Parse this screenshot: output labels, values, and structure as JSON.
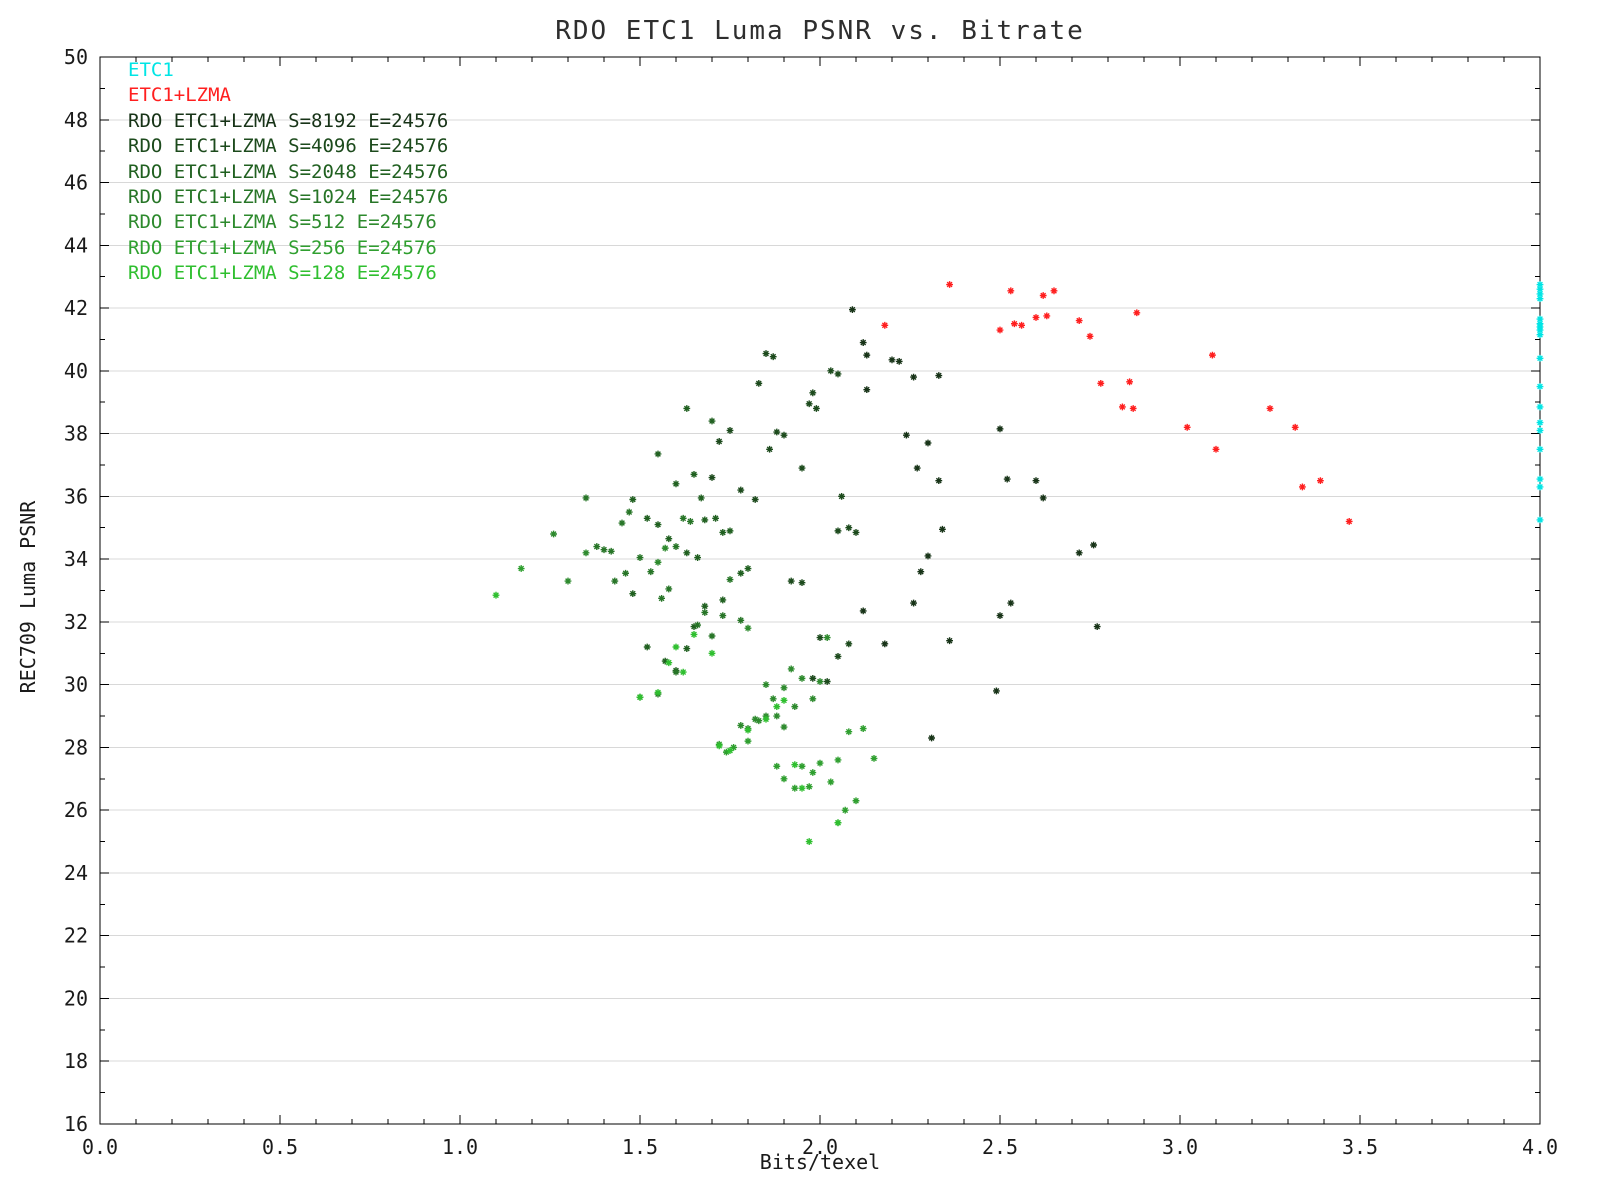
{
  "chart_data": {
    "type": "scatter",
    "title": "RDO ETC1 Luma PSNR vs. Bitrate",
    "xlabel": "Bits/texel",
    "ylabel": "REC709 Luma PSNR",
    "xlim": [
      0.0,
      4.0
    ],
    "ylim": [
      16,
      50
    ],
    "x_ticks": [
      "0.0",
      "0.5",
      "1.0",
      "1.5",
      "2.0",
      "2.5",
      "3.0",
      "3.5",
      "4.0"
    ],
    "y_ticks": [
      16,
      18,
      20,
      22,
      24,
      26,
      28,
      30,
      32,
      34,
      36,
      38,
      40,
      42,
      44,
      46,
      48,
      50
    ],
    "grid": true,
    "grid_color": "#d8d8d8",
    "axis_color": "#000000",
    "legend_position": "top-left-inside",
    "marker": "asterisk",
    "series": [
      {
        "name": "ETC1",
        "color": "#00e5e5",
        "points": [
          [
            4.0,
            42.75
          ],
          [
            4.0,
            42.6
          ],
          [
            4.0,
            42.45
          ],
          [
            4.0,
            42.3
          ],
          [
            4.0,
            41.65
          ],
          [
            4.0,
            41.5
          ],
          [
            4.0,
            41.4
          ],
          [
            4.0,
            41.3
          ],
          [
            4.0,
            41.15
          ],
          [
            4.0,
            40.4
          ],
          [
            4.0,
            39.5
          ],
          [
            4.0,
            38.85
          ],
          [
            4.0,
            38.35
          ],
          [
            4.0,
            38.1
          ],
          [
            4.0,
            37.5
          ],
          [
            4.0,
            36.55
          ],
          [
            4.0,
            36.3
          ],
          [
            4.0,
            35.25
          ]
        ]
      },
      {
        "name": "ETC1+LZMA",
        "color": "#ff1f1f",
        "points": [
          [
            2.18,
            41.45
          ],
          [
            2.36,
            42.75
          ],
          [
            2.5,
            41.3
          ],
          [
            2.53,
            42.55
          ],
          [
            2.54,
            41.5
          ],
          [
            2.56,
            41.45
          ],
          [
            2.6,
            41.7
          ],
          [
            2.62,
            42.4
          ],
          [
            2.63,
            41.75
          ],
          [
            2.65,
            42.55
          ],
          [
            2.72,
            41.6
          ],
          [
            2.75,
            41.1
          ],
          [
            2.78,
            39.6
          ],
          [
            2.84,
            38.85
          ],
          [
            2.86,
            39.65
          ],
          [
            2.88,
            41.85
          ],
          [
            2.87,
            38.8
          ],
          [
            3.02,
            38.2
          ],
          [
            3.09,
            40.5
          ],
          [
            3.1,
            37.5
          ],
          [
            3.25,
            38.8
          ],
          [
            3.32,
            38.2
          ],
          [
            3.34,
            36.3
          ],
          [
            3.39,
            36.5
          ],
          [
            3.47,
            35.2
          ]
        ]
      },
      {
        "name": "RDO ETC1+LZMA S=8192 E=24576",
        "color": "#173317",
        "points": [
          [
            2.09,
            41.95
          ],
          [
            2.12,
            40.9
          ],
          [
            2.13,
            40.5
          ],
          [
            2.2,
            40.35
          ],
          [
            2.22,
            40.3
          ],
          [
            2.26,
            39.8
          ],
          [
            2.13,
            39.4
          ],
          [
            2.33,
            39.85
          ],
          [
            2.24,
            37.95
          ],
          [
            2.3,
            37.7
          ],
          [
            2.27,
            36.9
          ],
          [
            2.33,
            36.5
          ],
          [
            2.5,
            38.15
          ],
          [
            2.52,
            36.55
          ],
          [
            2.6,
            36.5
          ],
          [
            2.62,
            35.95
          ],
          [
            2.72,
            34.2
          ],
          [
            2.76,
            34.45
          ],
          [
            2.77,
            31.85
          ],
          [
            2.34,
            34.95
          ],
          [
            2.3,
            34.1
          ],
          [
            2.28,
            33.6
          ],
          [
            2.26,
            32.6
          ],
          [
            2.36,
            31.4
          ],
          [
            2.5,
            32.2
          ],
          [
            2.53,
            32.6
          ],
          [
            2.49,
            29.8
          ],
          [
            2.31,
            28.3
          ],
          [
            2.18,
            31.3
          ],
          [
            2.12,
            32.35
          ]
        ]
      },
      {
        "name": "RDO ETC1+LZMA S=4096 E=24576",
        "color": "#1c4a1c",
        "points": [
          [
            1.85,
            40.55
          ],
          [
            1.87,
            40.45
          ],
          [
            1.83,
            39.6
          ],
          [
            1.98,
            39.3
          ],
          [
            1.97,
            38.95
          ],
          [
            1.99,
            38.8
          ],
          [
            2.03,
            40.0
          ],
          [
            2.05,
            39.9
          ],
          [
            1.88,
            38.05
          ],
          [
            1.9,
            37.95
          ],
          [
            1.86,
            37.5
          ],
          [
            1.72,
            37.75
          ],
          [
            1.75,
            38.1
          ],
          [
            1.7,
            36.6
          ],
          [
            1.78,
            36.2
          ],
          [
            1.82,
            35.9
          ],
          [
            1.95,
            36.9
          ],
          [
            2.06,
            36.0
          ],
          [
            2.08,
            35.0
          ],
          [
            2.05,
            34.9
          ],
          [
            2.1,
            34.85
          ],
          [
            1.92,
            33.3
          ],
          [
            1.95,
            33.25
          ],
          [
            2.0,
            31.5
          ],
          [
            2.05,
            30.9
          ],
          [
            2.08,
            31.3
          ],
          [
            1.98,
            30.2
          ],
          [
            2.02,
            30.1
          ]
        ]
      },
      {
        "name": "RDO ETC1+LZMA S=2048 E=24576",
        "color": "#206020",
        "points": [
          [
            1.63,
            38.8
          ],
          [
            1.7,
            38.4
          ],
          [
            1.55,
            37.35
          ],
          [
            1.6,
            36.4
          ],
          [
            1.65,
            36.7
          ],
          [
            1.67,
            35.95
          ],
          [
            1.48,
            35.9
          ],
          [
            1.52,
            35.3
          ],
          [
            1.55,
            35.1
          ],
          [
            1.58,
            34.65
          ],
          [
            1.63,
            34.2
          ],
          [
            1.66,
            34.05
          ],
          [
            1.68,
            35.25
          ],
          [
            1.71,
            35.3
          ],
          [
            1.73,
            34.85
          ],
          [
            1.75,
            34.9
          ],
          [
            1.78,
            33.55
          ],
          [
            1.8,
            33.7
          ],
          [
            1.73,
            32.7
          ],
          [
            1.68,
            32.5
          ],
          [
            1.65,
            31.85
          ],
          [
            1.63,
            31.15
          ],
          [
            1.6,
            30.45
          ],
          [
            1.57,
            30.75
          ],
          [
            1.52,
            31.2
          ],
          [
            1.48,
            32.9
          ]
        ]
      },
      {
        "name": "RDO ETC1+LZMA S=1024 E=24576",
        "color": "#277527",
        "points": [
          [
            1.35,
            35.95
          ],
          [
            1.38,
            34.4
          ],
          [
            1.4,
            34.3
          ],
          [
            1.42,
            34.25
          ],
          [
            1.45,
            35.15
          ],
          [
            1.47,
            35.5
          ],
          [
            1.43,
            33.3
          ],
          [
            1.46,
            33.55
          ],
          [
            1.5,
            34.05
          ],
          [
            1.53,
            33.6
          ],
          [
            1.56,
            32.75
          ],
          [
            1.58,
            33.05
          ],
          [
            1.6,
            34.4
          ],
          [
            1.62,
            35.3
          ],
          [
            1.64,
            35.2
          ],
          [
            1.66,
            31.9
          ],
          [
            1.68,
            32.3
          ],
          [
            1.7,
            31.55
          ],
          [
            1.73,
            32.2
          ],
          [
            1.75,
            33.35
          ],
          [
            1.78,
            32.05
          ],
          [
            1.5,
            29.6
          ],
          [
            1.55,
            29.7
          ],
          [
            1.6,
            30.4
          ]
        ]
      },
      {
        "name": "RDO ETC1+LZMA S=512 E=24576",
        "color": "#2d8a2d",
        "points": [
          [
            1.26,
            34.8
          ],
          [
            1.3,
            33.3
          ],
          [
            1.35,
            34.2
          ],
          [
            1.55,
            33.9
          ],
          [
            1.57,
            34.35
          ],
          [
            1.8,
            31.8
          ],
          [
            1.85,
            30.0
          ],
          [
            1.88,
            29.0
          ],
          [
            1.9,
            28.65
          ],
          [
            1.83,
            28.85
          ],
          [
            1.8,
            28.6
          ],
          [
            1.78,
            28.7
          ],
          [
            1.95,
            30.2
          ],
          [
            2.0,
            30.1
          ],
          [
            2.02,
            31.5
          ],
          [
            1.98,
            29.55
          ],
          [
            1.93,
            29.3
          ],
          [
            1.9,
            29.9
          ],
          [
            1.85,
            29.0
          ],
          [
            1.82,
            28.9
          ],
          [
            1.87,
            29.55
          ],
          [
            1.92,
            30.5
          ]
        ]
      },
      {
        "name": "RDO ETC1+LZMA S=256 E=24576",
        "color": "#2f9f2f",
        "points": [
          [
            1.17,
            33.7
          ],
          [
            1.72,
            28.1
          ],
          [
            1.74,
            27.85
          ],
          [
            2.05,
            27.6
          ],
          [
            2.08,
            28.5
          ],
          [
            1.95,
            27.4
          ],
          [
            1.97,
            26.75
          ],
          [
            2.1,
            26.3
          ],
          [
            2.05,
            25.6
          ],
          [
            1.93,
            26.7
          ],
          [
            1.88,
            27.4
          ],
          [
            2.0,
            27.5
          ],
          [
            1.8,
            28.2
          ],
          [
            1.76,
            28.0
          ],
          [
            2.12,
            28.6
          ],
          [
            2.15,
            27.65
          ],
          [
            1.98,
            27.2
          ],
          [
            2.03,
            26.9
          ],
          [
            1.9,
            27.0
          ],
          [
            2.07,
            26.0
          ]
        ]
      },
      {
        "name": "RDO ETC1+LZMA S=128 E=24576",
        "color": "#2fbf2f",
        "points": [
          [
            1.1,
            32.85
          ],
          [
            1.97,
            25.0
          ],
          [
            1.5,
            29.6
          ],
          [
            1.62,
            30.4
          ],
          [
            1.55,
            29.75
          ],
          [
            1.95,
            26.7
          ],
          [
            1.93,
            27.45
          ],
          [
            2.05,
            25.6
          ],
          [
            1.75,
            27.9
          ],
          [
            1.72,
            28.05
          ],
          [
            1.8,
            28.55
          ],
          [
            1.85,
            28.9
          ],
          [
            1.88,
            29.3
          ],
          [
            1.9,
            29.5
          ],
          [
            1.6,
            31.2
          ],
          [
            1.65,
            31.6
          ],
          [
            1.7,
            31.0
          ],
          [
            1.58,
            30.7
          ]
        ]
      }
    ]
  }
}
